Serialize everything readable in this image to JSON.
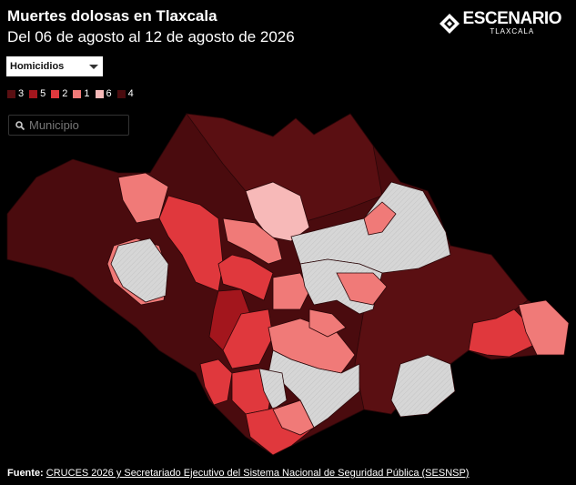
{
  "header": {
    "title": "Muertes dolosas en Tlaxcala",
    "subtitle": "Del 06 de agosto al 12 de agosto de 2026",
    "logo": "ESCENARIO",
    "logo_sub": "TLAXCALA"
  },
  "dropdown": {
    "selected": "Homicidios"
  },
  "legend": [
    {
      "value": 3,
      "color": "#5a0f12"
    },
    {
      "value": 5,
      "color": "#a3161d"
    },
    {
      "value": 2,
      "color": "#e0383d"
    },
    {
      "value": 1,
      "color": "#f07a78"
    },
    {
      "value": 6,
      "color": "#f7b9b8"
    },
    {
      "value": 4,
      "color": "#4a0b0e"
    }
  ],
  "search": {
    "placeholder": "Municipio"
  },
  "footer": {
    "label": "Fuente:",
    "source": "CRUCES 2026 y Secretariado Ejecutivo del Sistema Nacional de Seguridad Pública (SESNSP)"
  }
}
